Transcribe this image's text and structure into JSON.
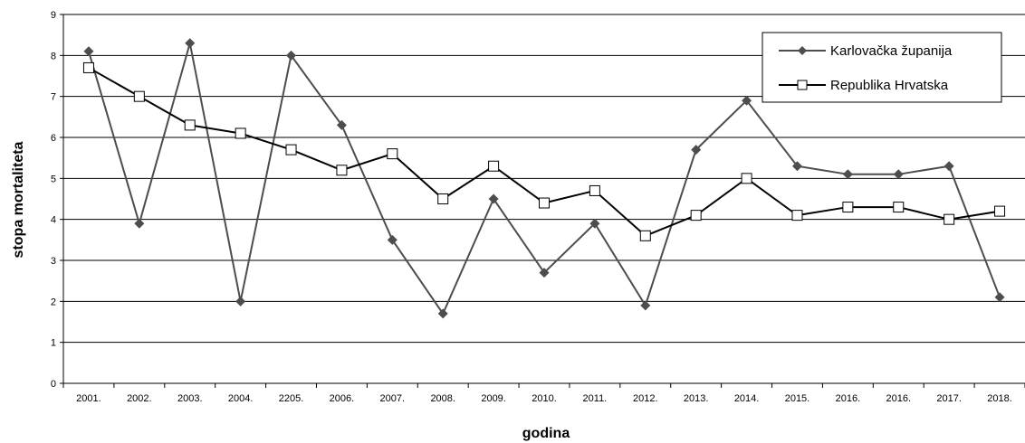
{
  "chart_data": {
    "type": "line",
    "xlabel": "godina",
    "ylabel": "stopa mortaliteta",
    "ylim": [
      0,
      9
    ],
    "yticks": [
      0,
      1,
      2,
      3,
      4,
      5,
      6,
      7,
      8,
      9
    ],
    "grid": "horizontal",
    "legend_position": "top-right",
    "categories": [
      "2001.",
      "2002.",
      "2003.",
      "2004.",
      "2205.",
      "2006.",
      "2007.",
      "2008.",
      "2009.",
      "2010.",
      "2011.",
      "2012.",
      "2013.",
      "2014.",
      "2015.",
      "2016.",
      "2016.",
      "2017.",
      "2018."
    ],
    "series": [
      {
        "name": "Karlovačka županija",
        "marker": "diamond",
        "color": "#4d4d4d",
        "values": [
          8.1,
          3.9,
          8.3,
          2.0,
          8.0,
          6.3,
          3.5,
          1.7,
          4.5,
          2.7,
          3.9,
          1.9,
          5.7,
          6.9,
          5.3,
          5.1,
          5.1,
          5.3,
          2.1
        ]
      },
      {
        "name": "Republika Hrvatska",
        "marker": "square-open",
        "color": "#000000",
        "values": [
          7.7,
          7.0,
          6.3,
          6.1,
          5.7,
          5.2,
          5.6,
          4.5,
          5.3,
          4.4,
          4.7,
          3.6,
          4.1,
          5.0,
          4.1,
          4.3,
          4.3,
          4.0,
          4.2
        ]
      }
    ]
  }
}
